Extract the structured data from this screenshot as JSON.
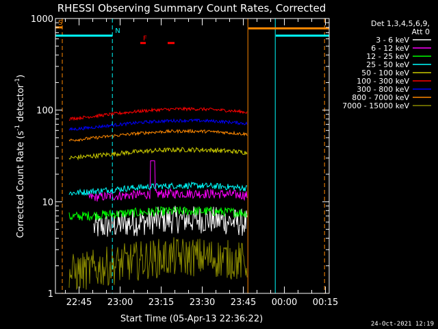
{
  "chart_data": {
    "type": "line",
    "title": "RHESSI Observing Summary Count Rates, Corrected",
    "xlabel": "Start Time (05-Apr-13 22:36:22)",
    "ylabel_main": "Corrected Count Rate (s",
    "ylabel_sup1": "-1",
    "ylabel_mid": " detector",
    "ylabel_sup2": "-1",
    "ylabel_end": ")",
    "ylim": [
      1,
      1000
    ],
    "yscale": "log",
    "y_ticks": [
      "1",
      "10",
      "100",
      "1000"
    ],
    "x_range_minutes": [
      0,
      100
    ],
    "x_ticks": [
      {
        "label": "22:45",
        "minute": 8.63
      },
      {
        "label": "23:00",
        "minute": 23.63
      },
      {
        "label": "23:15",
        "minute": 38.63
      },
      {
        "label": "23:30",
        "minute": 53.63
      },
      {
        "label": "23:45",
        "minute": 68.63
      },
      {
        "label": "00:00",
        "minute": 83.63
      },
      {
        "label": "00:15",
        "minute": 98.63
      }
    ],
    "legend_header": [
      "Det 1,3,4,5,6,9,",
      "Att 0"
    ],
    "series": [
      {
        "name": "3 - 6 keV",
        "color": "#ffffff",
        "base": 5.5,
        "amp": 0.9,
        "noise": 0.35,
        "start": 14,
        "end": 70
      },
      {
        "name": "6 - 12 keV",
        "color": "#ff00ff",
        "base": 11.5,
        "amp": 0.8,
        "noise": 0.12,
        "start": 12,
        "end": 70
      },
      {
        "name": "12 - 25 keV",
        "color": "#00ff00",
        "base": 7.3,
        "amp": 0.6,
        "noise": 0.12,
        "start": 5,
        "end": 70
      },
      {
        "name": "25 - 50 keV",
        "color": "#00ffff",
        "base": 13.5,
        "amp": 1.5,
        "noise": 0.08,
        "start": 5,
        "end": 70
      },
      {
        "name": "50 - 100 keV",
        "color": "#cccc00",
        "base": 33,
        "amp": 4,
        "noise": 0.06,
        "start": 5,
        "end": 70
      },
      {
        "name": "100 - 300 keV",
        "color": "#ff0000",
        "base": 90,
        "amp": 13,
        "noise": 0.04,
        "start": 5,
        "end": 70
      },
      {
        "name": "300 - 800 keV",
        "color": "#0000ff",
        "base": 68,
        "amp": 9,
        "noise": 0.04,
        "start": 5,
        "end": 70
      },
      {
        "name": "800 - 7000 keV",
        "color": "#ff8800",
        "base": 52,
        "amp": 7,
        "noise": 0.04,
        "start": 5,
        "end": 70
      },
      {
        "name": "7000 - 15000 keV",
        "color": "#888800",
        "base": 2.0,
        "amp": 0.5,
        "noise": 0.5,
        "start": 5,
        "end": 70
      }
    ],
    "flags": [
      {
        "label": "S",
        "color": "#ff8800",
        "start": 0,
        "end": 2.5,
        "level": 800
      },
      {
        "label": "",
        "color": "#00ffff",
        "start": 0,
        "end": 20.8,
        "level": 650
      },
      {
        "label": "N",
        "color": "#00ffff",
        "start": 20.8,
        "end": 20.8,
        "level": 650
      },
      {
        "label": "F",
        "color": "#ff0000",
        "start": 31,
        "end": 33,
        "level": 540
      },
      {
        "label": "",
        "color": "#ff0000",
        "start": 41,
        "end": 43.5,
        "level": 540
      },
      {
        "label": "",
        "color": "#ff8800",
        "start": 70.5,
        "end": 100,
        "level": 780
      },
      {
        "label": "",
        "color": "#00ffff",
        "start": 80.5,
        "end": 100,
        "level": 650
      }
    ],
    "vlines": [
      {
        "minute": 2.5,
        "color": "#ff8800",
        "dash": true
      },
      {
        "minute": 20.8,
        "color": "#00ffff",
        "dash": true
      },
      {
        "minute": 70.3,
        "color": "#ff8800",
        "dash": false
      },
      {
        "minute": 80.3,
        "color": "#00ffff",
        "dash": false
      },
      {
        "minute": 98.3,
        "color": "#ff8800",
        "dash": true
      }
    ],
    "spike": {
      "series": "6 - 12 keV",
      "minute": 35.5,
      "value": 28
    }
  },
  "footer": {
    "timestamp": "24-Oct-2021 12:19"
  }
}
